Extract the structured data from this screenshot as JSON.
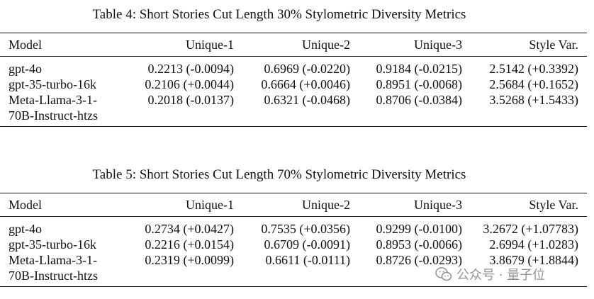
{
  "tables": [
    {
      "caption": "Table 4: Short Stories Cut Length 30% Stylometric Diversity Metrics",
      "headers": [
        "Model",
        "Unique-1",
        "Unique-2",
        "Unique-3",
        "Style Var."
      ],
      "rows": [
        {
          "model": "gpt-4o",
          "model2": "",
          "u1": "0.2213 (-0.0094)",
          "u2": "0.6969 (-0.0220)",
          "u3": "0.9184 (-0.0215)",
          "sv": "2.5142 (+0.3392)"
        },
        {
          "model": "gpt-35-turbo-16k",
          "model2": "",
          "u1": "0.2106 (+0.0044)",
          "u2": "0.6664 (+0.0046)",
          "u3": "0.8951 (-0.0068)",
          "sv": "2.5684 (+0.1652)"
        },
        {
          "model": "Meta-Llama-3-1-",
          "model2": "70B-Instruct-htzs",
          "u1": "0.2018 (-0.0137)",
          "u2": "0.6321 (-0.0468)",
          "u3": "0.8706 (-0.0384)",
          "sv": "3.5268 (+1.5433)"
        }
      ]
    },
    {
      "caption": "Table 5: Short Stories Cut Length 70% Stylometric Diversity Metrics",
      "headers": [
        "Model",
        "Unique-1",
        "Unique-2",
        "Unique-3",
        "Style Var."
      ],
      "rows": [
        {
          "model": "gpt-4o",
          "model2": "",
          "u1": "0.2734 (+0.0427)",
          "u2": "0.7535 (+0.0356)",
          "u3": "0.9299 (-0.0100)",
          "sv": "3.2672 (+1.07783)"
        },
        {
          "model": "gpt-35-turbo-16k",
          "model2": "",
          "u1": "0.2216 (+0.0154)",
          "u2": "0.6709 (-0.0091)",
          "u3": "0.8953 (-0.0066)",
          "sv": "2.6994 (+1.0283)"
        },
        {
          "model": "Meta-Llama-3-1-",
          "model2": "70B-Instruct-htzs",
          "u1": "0.2319 (+0.0099)",
          "u2": "0.6611 (-0.0111)",
          "u3": "0.8726 (-0.0293)",
          "sv": "3.8679 (+1.8844)"
        }
      ]
    }
  ],
  "watermark": {
    "icon": "wechat-icon",
    "text": "公众号 · 量子位"
  }
}
